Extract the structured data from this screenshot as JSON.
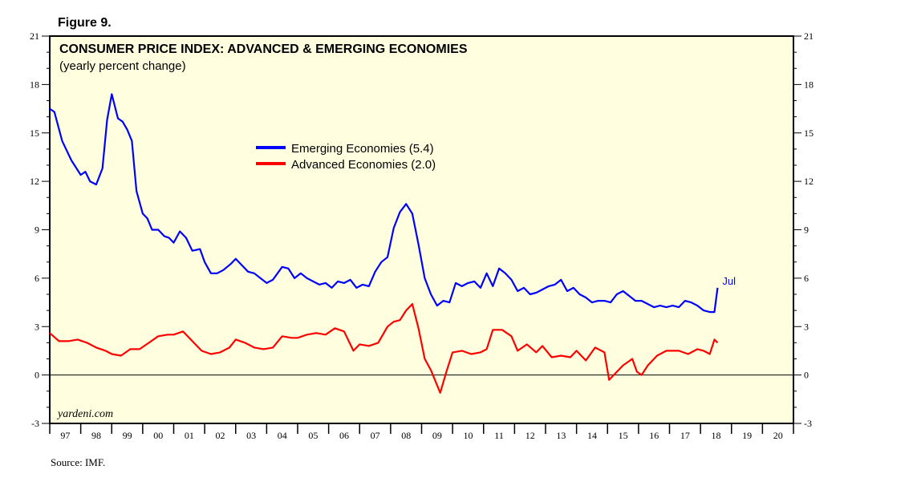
{
  "figure_label": "Figure 9.",
  "source": "Source: IMF.",
  "watermark": "yardeni.com",
  "colors": {
    "plot_bg": "#ffffe0",
    "emerging": "#0000ff",
    "advanced": "#ff0000",
    "axis": "#000000"
  },
  "chart_data": {
    "type": "line",
    "title": "CONSUMER PRICE INDEX: ADVANCED & EMERGING ECONOMIES",
    "subtitle": "(yearly percent change)",
    "xlabel": "",
    "ylabel": "",
    "xlim": [
      1997.0,
      2021.0
    ],
    "ylim": [
      -3,
      21
    ],
    "yticks": [
      -3,
      0,
      3,
      6,
      9,
      12,
      15,
      18,
      21
    ],
    "ytick_labels": [
      "-3",
      "0",
      "3",
      "6",
      "9",
      "12",
      "15",
      "18",
      "21"
    ],
    "xtick_labels": [
      "97",
      "98",
      "99",
      "00",
      "01",
      "02",
      "03",
      "04",
      "05",
      "06",
      "07",
      "08",
      "09",
      "10",
      "11",
      "12",
      "13",
      "14",
      "15",
      "16",
      "17",
      "18",
      "19",
      "20"
    ],
    "grid": false,
    "zero_line": true,
    "legend_position": "top-center",
    "end_annotation": "Jul",
    "series": [
      {
        "name": "Emerging Economies (5.4)",
        "color": "#0000ff",
        "x": [
          1997.0,
          1997.15,
          1997.4,
          1997.7,
          1998.0,
          1998.15,
          1998.3,
          1998.5,
          1998.7,
          1998.85,
          1999.0,
          1999.2,
          1999.35,
          1999.5,
          1999.65,
          1999.8,
          2000.0,
          2000.15,
          2000.3,
          2000.5,
          2000.7,
          2000.85,
          2001.0,
          2001.2,
          2001.4,
          2001.6,
          2001.85,
          2002.0,
          2002.2,
          2002.4,
          2002.6,
          2002.85,
          2003.0,
          2003.2,
          2003.4,
          2003.6,
          2003.8,
          2004.0,
          2004.2,
          2004.5,
          2004.7,
          2004.9,
          2005.1,
          2005.3,
          2005.5,
          2005.7,
          2005.9,
          2006.1,
          2006.3,
          2006.5,
          2006.7,
          2006.9,
          2007.1,
          2007.3,
          2007.5,
          2007.7,
          2007.9,
          2008.1,
          2008.3,
          2008.5,
          2008.7,
          2008.9,
          2009.1,
          2009.3,
          2009.5,
          2009.7,
          2009.9,
          2010.1,
          2010.3,
          2010.5,
          2010.7,
          2010.9,
          2011.1,
          2011.3,
          2011.5,
          2011.7,
          2011.9,
          2012.1,
          2012.3,
          2012.5,
          2012.7,
          2012.9,
          2013.1,
          2013.3,
          2013.5,
          2013.7,
          2013.9,
          2014.1,
          2014.3,
          2014.5,
          2014.7,
          2014.9,
          2015.1,
          2015.3,
          2015.5,
          2015.7,
          2015.9,
          2016.1,
          2016.3,
          2016.5,
          2016.7,
          2016.9,
          2017.1,
          2017.3,
          2017.5,
          2017.7,
          2017.9,
          2018.1,
          2018.3,
          2018.45,
          2018.55
        ],
        "values": [
          16.5,
          16.3,
          14.5,
          13.3,
          12.4,
          12.6,
          12.0,
          11.8,
          12.8,
          15.8,
          17.4,
          15.9,
          15.7,
          15.2,
          14.5,
          11.4,
          10.0,
          9.7,
          9.0,
          9.0,
          8.6,
          8.5,
          8.2,
          8.9,
          8.5,
          7.7,
          7.8,
          7.0,
          6.3,
          6.3,
          6.5,
          6.9,
          7.2,
          6.8,
          6.4,
          6.3,
          6.0,
          5.7,
          5.9,
          6.7,
          6.6,
          6.0,
          6.3,
          6.0,
          5.8,
          5.6,
          5.7,
          5.4,
          5.8,
          5.7,
          5.9,
          5.4,
          5.6,
          5.5,
          6.4,
          7.0,
          7.3,
          9.1,
          10.1,
          10.6,
          10.0,
          8.1,
          6.0,
          5.0,
          4.3,
          4.6,
          4.5,
          5.7,
          5.5,
          5.7,
          5.8,
          5.4,
          6.3,
          5.5,
          6.6,
          6.3,
          5.9,
          5.2,
          5.4,
          5.0,
          5.1,
          5.3,
          5.5,
          5.6,
          5.9,
          5.2,
          5.4,
          5.0,
          4.8,
          4.5,
          4.6,
          4.6,
          4.5,
          5.0,
          5.2,
          4.9,
          4.6,
          4.6,
          4.4,
          4.2,
          4.3,
          4.2,
          4.3,
          4.2,
          4.6,
          4.5,
          4.3,
          4.0,
          3.9,
          3.9,
          5.4
        ]
      },
      {
        "name": "Advanced Economies (2.0)",
        "color": "#ff0000",
        "x": [
          1997.0,
          1997.3,
          1997.6,
          1997.9,
          1998.2,
          1998.5,
          1998.8,
          1999.0,
          1999.3,
          1999.6,
          1999.9,
          2000.2,
          2000.5,
          2000.8,
          2001.0,
          2001.3,
          2001.6,
          2001.9,
          2002.2,
          2002.5,
          2002.8,
          2003.0,
          2003.3,
          2003.6,
          2003.9,
          2004.2,
          2004.5,
          2004.8,
          2005.0,
          2005.3,
          2005.6,
          2005.9,
          2006.2,
          2006.5,
          2006.8,
          2007.0,
          2007.3,
          2007.6,
          2007.9,
          2008.1,
          2008.3,
          2008.5,
          2008.7,
          2008.9,
          2009.1,
          2009.3,
          2009.45,
          2009.6,
          2009.8,
          2010.0,
          2010.3,
          2010.6,
          2010.9,
          2011.1,
          2011.3,
          2011.6,
          2011.9,
          2012.1,
          2012.4,
          2012.7,
          2012.9,
          2013.2,
          2013.5,
          2013.8,
          2014.0,
          2014.3,
          2014.6,
          2014.9,
          2015.05,
          2015.2,
          2015.5,
          2015.8,
          2015.95,
          2016.1,
          2016.3,
          2016.6,
          2016.9,
          2017.1,
          2017.3,
          2017.6,
          2017.9,
          2018.1,
          2018.3,
          2018.45,
          2018.55
        ],
        "values": [
          2.6,
          2.1,
          2.1,
          2.2,
          2.0,
          1.7,
          1.5,
          1.3,
          1.2,
          1.6,
          1.6,
          2.0,
          2.4,
          2.5,
          2.5,
          2.7,
          2.1,
          1.5,
          1.3,
          1.4,
          1.7,
          2.2,
          2.0,
          1.7,
          1.6,
          1.7,
          2.4,
          2.3,
          2.3,
          2.5,
          2.6,
          2.5,
          2.9,
          2.7,
          1.5,
          1.9,
          1.8,
          2.0,
          3.0,
          3.3,
          3.4,
          4.0,
          4.4,
          2.9,
          1.0,
          0.3,
          -0.4,
          -1.1,
          0.2,
          1.4,
          1.5,
          1.3,
          1.4,
          1.6,
          2.8,
          2.8,
          2.4,
          1.5,
          1.9,
          1.4,
          1.8,
          1.1,
          1.2,
          1.1,
          1.5,
          0.9,
          1.7,
          1.4,
          -0.3,
          0.0,
          0.6,
          1.0,
          0.2,
          0.0,
          0.6,
          1.2,
          1.5,
          1.5,
          1.5,
          1.3,
          1.6,
          1.5,
          1.3,
          2.2,
          2.0
        ]
      }
    ]
  }
}
